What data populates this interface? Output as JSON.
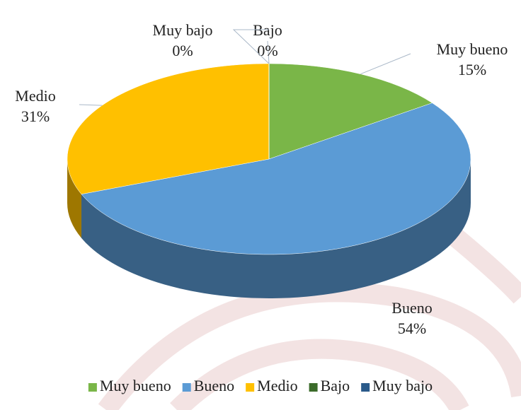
{
  "chart_data": {
    "type": "pie3d",
    "categories": [
      "Muy bueno",
      "Bueno",
      "Medio",
      "Bajo",
      "Muy bajo"
    ],
    "values": [
      15,
      54,
      31,
      0,
      0
    ],
    "value_labels": [
      "15%",
      "54%",
      "31%",
      "0%",
      "0%"
    ],
    "colors": [
      "#7ab648",
      "#5b9bd5",
      "#ffc000",
      "#3b6b2a",
      "#2a5a8a"
    ],
    "legend": "bottom"
  }
}
